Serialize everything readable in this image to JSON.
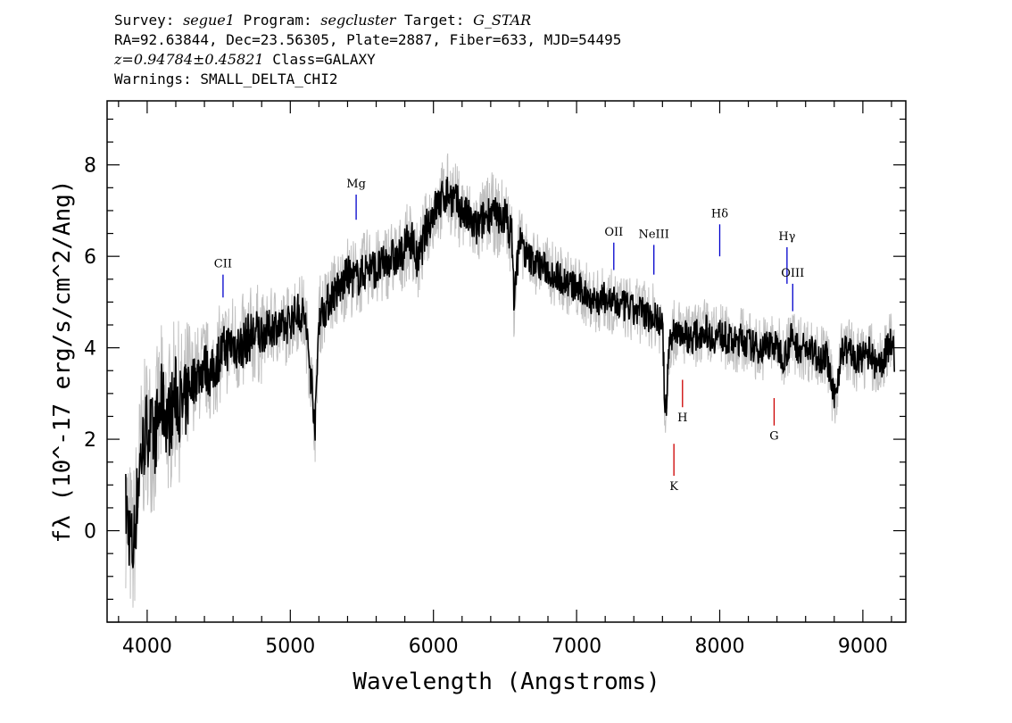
{
  "header": {
    "survey_label": "Survey:",
    "survey": "segue1",
    "program_label": "Program:",
    "program": "segcluster",
    "target_label": "Target:",
    "target": "G_STAR",
    "line2": "RA=92.63844, Dec=23.56305, Plate=2887, Fiber=633, MJD=54495",
    "redshift": "z=0.94784±0.45821",
    "class": "Class=GALAXY",
    "warnings": "Warnings: SMALL_DELTA_CHI2"
  },
  "colors": {
    "spectrum": "#000000",
    "error_band": "#c0c0c0",
    "emission": "#0000cc",
    "absorption": "#cc0000"
  },
  "chart_data": {
    "type": "line",
    "title": "",
    "xlabel": "Wavelength (Angstroms)",
    "ylabel": "fλ (10^-17 erg/s/cm^2/Ang)",
    "xlim": [
      3720,
      9300
    ],
    "ylim": [
      -2.0,
      9.4
    ],
    "xticks": [
      4000,
      5000,
      6000,
      7000,
      8000,
      9000
    ],
    "yticks": [
      0,
      2,
      4,
      6,
      8
    ],
    "grid": false,
    "x": [
      3850,
      3900,
      3950,
      4000,
      4050,
      4100,
      4150,
      4200,
      4250,
      4300,
      4350,
      4400,
      4450,
      4500,
      4550,
      4600,
      4650,
      4700,
      4750,
      4800,
      4850,
      4900,
      4950,
      5000,
      5050,
      5100,
      5150,
      5175,
      5200,
      5250,
      5300,
      5350,
      5400,
      5450,
      5500,
      5550,
      5600,
      5650,
      5700,
      5750,
      5800,
      5850,
      5890,
      5950,
      6000,
      6050,
      6100,
      6150,
      6200,
      6250,
      6300,
      6350,
      6400,
      6450,
      6500,
      6550,
      6563,
      6600,
      6650,
      6700,
      6750,
      6800,
      6850,
      6900,
      6950,
      7000,
      7050,
      7100,
      7150,
      7200,
      7250,
      7300,
      7350,
      7400,
      7450,
      7500,
      7550,
      7600,
      7620,
      7650,
      7700,
      7750,
      7800,
      7850,
      7900,
      7950,
      8000,
      8050,
      8100,
      8150,
      8200,
      8250,
      8300,
      8350,
      8400,
      8450,
      8500,
      8550,
      8600,
      8650,
      8700,
      8750,
      8800,
      8850,
      8900,
      8950,
      9000,
      9050,
      9100,
      9150,
      9200,
      9220
    ],
    "series": [
      {
        "values": [
          0.5,
          -0.5,
          1.5,
          2.3,
          2.0,
          2.8,
          2.4,
          3.0,
          2.6,
          3.2,
          3.4,
          3.6,
          3.4,
          3.8,
          4.0,
          4.1,
          4.0,
          4.2,
          4.3,
          4.3,
          4.4,
          4.5,
          4.4,
          4.6,
          4.8,
          4.7,
          3.2,
          2.3,
          4.7,
          4.9,
          5.2,
          5.3,
          5.6,
          5.5,
          5.6,
          5.8,
          5.7,
          5.8,
          6.0,
          5.9,
          6.2,
          6.4,
          5.8,
          6.6,
          7.0,
          7.2,
          7.4,
          7.2,
          7.0,
          6.8,
          6.6,
          6.8,
          7.0,
          6.8,
          6.9,
          6.4,
          5.0,
          6.4,
          6.0,
          5.9,
          5.8,
          5.7,
          5.6,
          5.5,
          5.4,
          5.3,
          5.2,
          5.1,
          5.0,
          5.1,
          5.0,
          4.9,
          4.9,
          4.8,
          4.8,
          4.7,
          4.7,
          4.5,
          2.4,
          4.2,
          4.4,
          4.3,
          4.2,
          4.3,
          4.4,
          4.2,
          4.3,
          4.2,
          4.1,
          4.2,
          4.1,
          4.0,
          4.0,
          4.1,
          4.0,
          3.8,
          4.2,
          4.0,
          4.0,
          3.9,
          3.8,
          3.8,
          2.8,
          3.9,
          4.0,
          3.7,
          3.8,
          3.9,
          3.5,
          3.8,
          4.2,
          3.8
        ]
      }
    ],
    "annotations": [
      {
        "label": "CII",
        "x": 4530,
        "y1": 5.1,
        "y2": 5.6,
        "kind": "emission"
      },
      {
        "label": "Mg",
        "x": 5460,
        "y1": 6.8,
        "y2": 7.35,
        "kind": "emission"
      },
      {
        "label": "OII",
        "x": 7260,
        "y1": 5.7,
        "y2": 6.3,
        "kind": "emission"
      },
      {
        "label": "NeIII",
        "x": 7540,
        "y1": 5.6,
        "y2": 6.25,
        "kind": "emission"
      },
      {
        "label": "Hδ",
        "x": 8000,
        "y1": 6.0,
        "y2": 6.7,
        "kind": "emission"
      },
      {
        "label": "Hγ",
        "x": 8470,
        "y1": 5.4,
        "y2": 6.2,
        "kind": "emission"
      },
      {
        "label": "OIII",
        "x": 8510,
        "y1": 4.8,
        "y2": 5.4,
        "kind": "emission"
      },
      {
        "label": "H",
        "x": 7740,
        "y1": 2.7,
        "y2": 3.3,
        "kind": "absorption"
      },
      {
        "label": "G",
        "x": 8380,
        "y1": 2.3,
        "y2": 2.9,
        "kind": "absorption"
      },
      {
        "label": "K",
        "x": 7680,
        "y1": 1.2,
        "y2": 1.9,
        "kind": "absorption"
      }
    ]
  }
}
